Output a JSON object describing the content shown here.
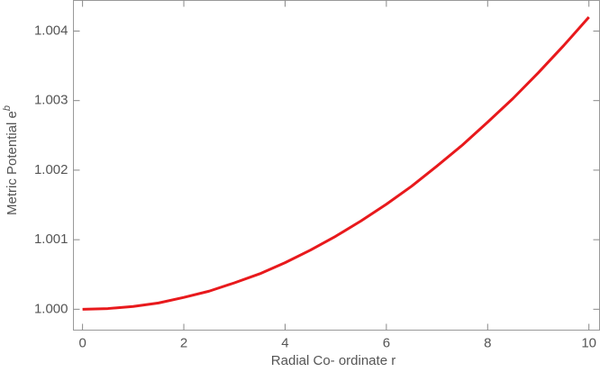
{
  "chart_data": {
    "type": "line",
    "xlabel": "Radial Co- ordinate r",
    "ylabel": "Metric Potential e",
    "ylabel_superscript": "b",
    "x": [
      0,
      0.5,
      1,
      1.5,
      2,
      2.5,
      3,
      3.5,
      4,
      4.5,
      5,
      5.5,
      6,
      6.5,
      7,
      7.5,
      8,
      8.5,
      9,
      9.5,
      10
    ],
    "series": [
      {
        "color": "#e8191c",
        "values": [
          1.0,
          1.00001,
          1.00004,
          1.00009,
          1.00017,
          1.00026,
          1.00038,
          1.00051,
          1.00067,
          1.00085,
          1.00105,
          1.00127,
          1.00151,
          1.00177,
          1.00206,
          1.00236,
          1.00269,
          1.00303,
          1.0034,
          1.00379,
          1.0042
        ]
      }
    ],
    "xlim": [
      -0.18,
      10.21
    ],
    "ylim": [
      0.9997,
      1.00444
    ],
    "xticks": [
      0,
      2,
      4,
      6,
      8,
      10
    ],
    "yticks": [
      {
        "value": 1.0,
        "label": "1.000"
      },
      {
        "value": 1.001,
        "label": "1.001"
      },
      {
        "value": 1.002,
        "label": "1.002"
      },
      {
        "value": 1.003,
        "label": "1.003"
      },
      {
        "value": 1.004,
        "label": "1.004"
      }
    ],
    "grid": false
  }
}
